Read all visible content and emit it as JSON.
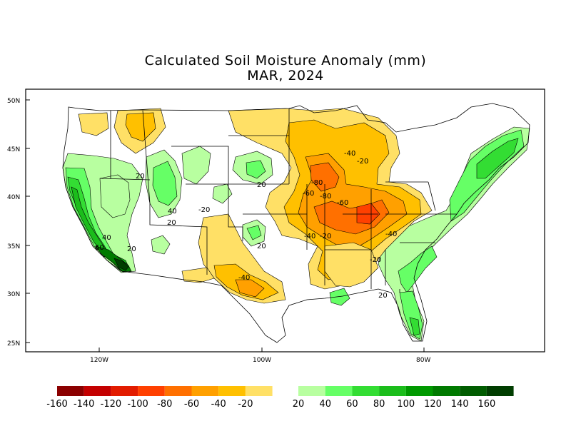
{
  "title": "Calculated Soil Moisture Anomaly (mm)",
  "subtitle": "MAR, 2024",
  "lat_ticks": [
    "50N",
    "45N",
    "40N",
    "35N",
    "30N",
    "25N"
  ],
  "lon_ticks": [
    "120W",
    "100W",
    "80W"
  ],
  "colorbar": {
    "dry": [
      {
        "label": "-160",
        "color": "#8b0000"
      },
      {
        "label": "-140",
        "color": "#c40000"
      },
      {
        "label": "-120",
        "color": "#e21c00"
      },
      {
        "label": "-100",
        "color": "#ff4000"
      },
      {
        "label": "-80",
        "color": "#ff7000"
      },
      {
        "label": "-60",
        "color": "#ffa000"
      },
      {
        "label": "-40",
        "color": "#ffc000"
      },
      {
        "label": "-20",
        "color": "#ffe066"
      }
    ],
    "wet": [
      {
        "label": "20",
        "color": "#b8ffa0"
      },
      {
        "label": "40",
        "color": "#66ff66"
      },
      {
        "label": "60",
        "color": "#33dd33"
      },
      {
        "label": "80",
        "color": "#1bbd1b"
      },
      {
        "label": "100",
        "color": "#009900"
      },
      {
        "label": "120",
        "color": "#007a00"
      },
      {
        "label": "140",
        "color": "#005c00"
      },
      {
        "label": "160",
        "color": "#003d00"
      }
    ]
  },
  "contour_labels": [
    {
      "text": "20",
      "k": "a"
    },
    {
      "text": "40",
      "k": "b"
    },
    {
      "text": "20",
      "k": "c"
    },
    {
      "text": "-20",
      "k": "d"
    },
    {
      "text": "20",
      "k": "e"
    },
    {
      "text": "20",
      "k": "f"
    },
    {
      "text": "40",
      "k": "g"
    },
    {
      "text": "60",
      "k": "h"
    },
    {
      "text": "20",
      "k": "i"
    },
    {
      "text": "-40",
      "k": "j"
    },
    {
      "text": "-80",
      "k": "k"
    },
    {
      "text": "-60",
      "k": "l"
    },
    {
      "text": "-80",
      "k": "m"
    },
    {
      "text": "-60",
      "k": "n"
    },
    {
      "text": "-40",
      "k": "o"
    },
    {
      "text": "-20",
      "k": "p"
    },
    {
      "text": "-40",
      "k": "q"
    },
    {
      "text": "-20",
      "k": "r"
    },
    {
      "text": "20",
      "k": "s"
    },
    {
      "text": "-40",
      "k": "t"
    },
    {
      "text": "-20",
      "k": "u"
    }
  ]
}
